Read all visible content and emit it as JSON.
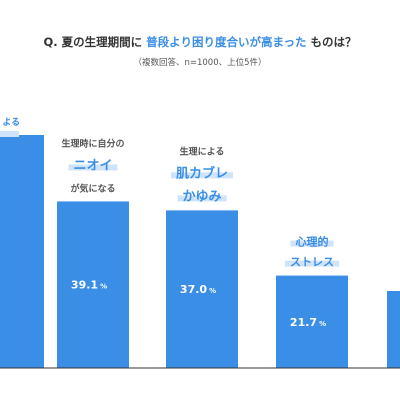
{
  "title": {
    "prefix": "Q. 夏の生理期間に",
    "highlight": "普段より困り度合いが高まった",
    "suffix": "ものは？"
  },
  "subtitle": "（複数回答、n=1000、上位5件）",
  "colors": {
    "bar": "#3a8ee6",
    "label_highlight": "#cfe3fa",
    "label_text": "#3a8ee6",
    "label_small": "#555555",
    "value_text": "#ffffff",
    "baseline": "#333333"
  },
  "chart_data": {
    "type": "bar",
    "categories": [
      "…による",
      "生理時に自分のニオイが気になる",
      "生理による肌カブレかゆみ",
      "心理的ストレス",
      ""
    ],
    "values": [
      null,
      39.1,
      37.0,
      21.7,
      null
    ],
    "value_labels": [
      "",
      "39.1",
      "37.0",
      "21.7",
      ""
    ],
    "unit": "%",
    "labels": [
      [
        {
          "text": "よる",
          "size": "small"
        }
      ],
      [
        {
          "text": "生理時に自分の",
          "size": "small"
        },
        {
          "text": "ニオイ",
          "size": "large"
        },
        {
          "text": "が気になる",
          "size": "small"
        }
      ],
      [
        {
          "text": "生理による",
          "size": "small"
        },
        {
          "text": "肌カブレ",
          "size": "large"
        },
        {
          "text": "かゆみ",
          "size": "large"
        }
      ],
      [
        {
          "text": "心理的",
          "size": "medium"
        },
        {
          "text": "ストレス",
          "size": "medium"
        }
      ],
      []
    ],
    "ylim": [
      0,
      50
    ]
  }
}
